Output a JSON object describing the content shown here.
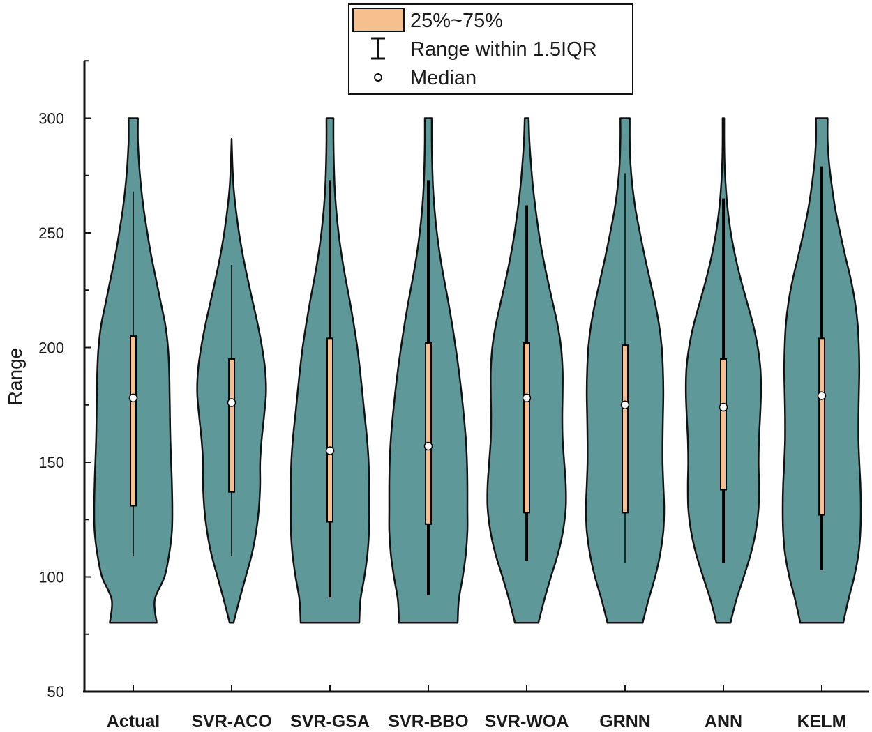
{
  "chart_data": {
    "type": "violin",
    "ylabel": "Range",
    "xlabel": "",
    "ylim": [
      50,
      325
    ],
    "yticks": [
      50,
      100,
      150,
      200,
      250,
      300
    ],
    "categories": [
      "Actual",
      "SVR-ACO",
      "SVR-GSA",
      "SVR-BBO",
      "SVR-WOA",
      "GRNN",
      "ANN",
      "KELM"
    ],
    "series": [
      {
        "name": "Actual",
        "min": 80,
        "max": 300,
        "q1": 131,
        "median": 178,
        "q3": 205,
        "whisker_low": 109,
        "whisker_high": 268,
        "density": [
          [
            80,
            0.6
          ],
          [
            90,
            0.55
          ],
          [
            100,
            0.8
          ],
          [
            110,
            0.92
          ],
          [
            120,
            0.99
          ],
          [
            130,
            1.0
          ],
          [
            140,
            0.99
          ],
          [
            150,
            0.97
          ],
          [
            160,
            0.95
          ],
          [
            170,
            0.94
          ],
          [
            180,
            0.93
          ],
          [
            190,
            0.92
          ],
          [
            200,
            0.89
          ],
          [
            210,
            0.82
          ],
          [
            220,
            0.7
          ],
          [
            230,
            0.58
          ],
          [
            240,
            0.46
          ],
          [
            250,
            0.36
          ],
          [
            260,
            0.27
          ],
          [
            270,
            0.2
          ],
          [
            280,
            0.15
          ],
          [
            290,
            0.12
          ],
          [
            300,
            0.12
          ]
        ]
      },
      {
        "name": "SVR-ACO",
        "min": 80,
        "max": 291,
        "q1": 137,
        "median": 176,
        "q3": 195,
        "whisker_low": 109,
        "whisker_high": 236,
        "density": [
          [
            80,
            0.05
          ],
          [
            90,
            0.2
          ],
          [
            100,
            0.36
          ],
          [
            110,
            0.52
          ],
          [
            120,
            0.63
          ],
          [
            130,
            0.7
          ],
          [
            140,
            0.73
          ],
          [
            150,
            0.73
          ],
          [
            160,
            0.77
          ],
          [
            170,
            0.83
          ],
          [
            180,
            0.88
          ],
          [
            190,
            0.86
          ],
          [
            200,
            0.78
          ],
          [
            210,
            0.67
          ],
          [
            220,
            0.54
          ],
          [
            230,
            0.41
          ],
          [
            240,
            0.29
          ],
          [
            250,
            0.19
          ],
          [
            260,
            0.11
          ],
          [
            270,
            0.05
          ],
          [
            280,
            0.02
          ],
          [
            291,
            0.0
          ]
        ]
      },
      {
        "name": "SVR-GSA",
        "min": 80,
        "max": 300,
        "q1": 124,
        "median": 155,
        "q3": 204,
        "whisker_low": 91,
        "whisker_high": 273,
        "density": [
          [
            80,
            0.75
          ],
          [
            90,
            0.78
          ],
          [
            100,
            0.88
          ],
          [
            110,
            0.96
          ],
          [
            120,
            1.0
          ],
          [
            130,
            1.0
          ],
          [
            140,
            1.0
          ],
          [
            150,
            0.99
          ],
          [
            160,
            0.95
          ],
          [
            170,
            0.89
          ],
          [
            180,
            0.83
          ],
          [
            190,
            0.77
          ],
          [
            200,
            0.7
          ],
          [
            210,
            0.61
          ],
          [
            220,
            0.51
          ],
          [
            230,
            0.4
          ],
          [
            240,
            0.3
          ],
          [
            250,
            0.22
          ],
          [
            260,
            0.16
          ],
          [
            270,
            0.12
          ],
          [
            280,
            0.1
          ],
          [
            290,
            0.09
          ],
          [
            300,
            0.09
          ]
        ]
      },
      {
        "name": "SVR-BBO",
        "min": 80,
        "max": 300,
        "q1": 123,
        "median": 157,
        "q3": 202,
        "whisker_low": 92,
        "whisker_high": 273,
        "density": [
          [
            80,
            0.75
          ],
          [
            90,
            0.78
          ],
          [
            100,
            0.88
          ],
          [
            110,
            0.96
          ],
          [
            120,
            1.0
          ],
          [
            130,
            1.0
          ],
          [
            140,
            1.0
          ],
          [
            150,
            0.99
          ],
          [
            160,
            0.96
          ],
          [
            170,
            0.91
          ],
          [
            180,
            0.85
          ],
          [
            190,
            0.78
          ],
          [
            200,
            0.7
          ],
          [
            210,
            0.61
          ],
          [
            220,
            0.51
          ],
          [
            230,
            0.4
          ],
          [
            240,
            0.3
          ],
          [
            250,
            0.22
          ],
          [
            260,
            0.16
          ],
          [
            270,
            0.12
          ],
          [
            280,
            0.1
          ],
          [
            290,
            0.09
          ],
          [
            300,
            0.09
          ]
        ]
      },
      {
        "name": "SVR-WOA",
        "min": 80,
        "max": 300,
        "q1": 128,
        "median": 178,
        "q3": 202,
        "whisker_low": 107,
        "whisker_high": 262,
        "density": [
          [
            80,
            0.3
          ],
          [
            90,
            0.45
          ],
          [
            100,
            0.62
          ],
          [
            110,
            0.8
          ],
          [
            120,
            0.93
          ],
          [
            130,
            1.0
          ],
          [
            140,
            1.0
          ],
          [
            150,
            0.96
          ],
          [
            160,
            0.92
          ],
          [
            170,
            0.91
          ],
          [
            180,
            0.92
          ],
          [
            190,
            0.92
          ],
          [
            200,
            0.88
          ],
          [
            210,
            0.79
          ],
          [
            220,
            0.66
          ],
          [
            230,
            0.53
          ],
          [
            240,
            0.41
          ],
          [
            250,
            0.31
          ],
          [
            260,
            0.23
          ],
          [
            270,
            0.16
          ],
          [
            280,
            0.11
          ],
          [
            290,
            0.07
          ],
          [
            300,
            0.05
          ]
        ]
      },
      {
        "name": "GRNN",
        "min": 80,
        "max": 300,
        "q1": 128,
        "median": 175,
        "q3": 201,
        "whisker_low": 106,
        "whisker_high": 276,
        "density": [
          [
            80,
            0.45
          ],
          [
            90,
            0.6
          ],
          [
            100,
            0.77
          ],
          [
            110,
            0.9
          ],
          [
            120,
            0.98
          ],
          [
            130,
            1.0
          ],
          [
            140,
            0.98
          ],
          [
            150,
            0.96
          ],
          [
            160,
            0.96
          ],
          [
            170,
            0.97
          ],
          [
            180,
            0.98
          ],
          [
            190,
            0.97
          ],
          [
            200,
            0.94
          ],
          [
            210,
            0.87
          ],
          [
            220,
            0.76
          ],
          [
            230,
            0.63
          ],
          [
            240,
            0.5
          ],
          [
            250,
            0.38
          ],
          [
            260,
            0.27
          ],
          [
            270,
            0.19
          ],
          [
            280,
            0.14
          ],
          [
            290,
            0.12
          ],
          [
            300,
            0.12
          ]
        ]
      },
      {
        "name": "ANN",
        "min": 80,
        "max": 300,
        "q1": 138,
        "median": 174,
        "q3": 195,
        "whisker_low": 106,
        "whisker_high": 265,
        "density": [
          [
            80,
            0.18
          ],
          [
            90,
            0.33
          ],
          [
            100,
            0.52
          ],
          [
            110,
            0.7
          ],
          [
            120,
            0.83
          ],
          [
            130,
            0.9
          ],
          [
            140,
            0.91
          ],
          [
            150,
            0.9
          ],
          [
            160,
            0.91
          ],
          [
            170,
            0.94
          ],
          [
            180,
            0.96
          ],
          [
            190,
            0.95
          ],
          [
            200,
            0.88
          ],
          [
            210,
            0.76
          ],
          [
            220,
            0.6
          ],
          [
            230,
            0.44
          ],
          [
            240,
            0.3
          ],
          [
            250,
            0.19
          ],
          [
            260,
            0.11
          ],
          [
            270,
            0.06
          ],
          [
            280,
            0.03
          ],
          [
            290,
            0.02
          ],
          [
            300,
            0.02
          ]
        ]
      },
      {
        "name": "KELM",
        "min": 80,
        "max": 300,
        "q1": 127,
        "median": 179,
        "q3": 204,
        "whisker_low": 103,
        "whisker_high": 279,
        "density": [
          [
            80,
            0.55
          ],
          [
            90,
            0.68
          ],
          [
            100,
            0.83
          ],
          [
            110,
            0.94
          ],
          [
            120,
            0.99
          ],
          [
            130,
            1.0
          ],
          [
            140,
            0.99
          ],
          [
            150,
            0.96
          ],
          [
            160,
            0.94
          ],
          [
            170,
            0.94
          ],
          [
            180,
            0.95
          ],
          [
            190,
            0.96
          ],
          [
            200,
            0.95
          ],
          [
            210,
            0.92
          ],
          [
            220,
            0.85
          ],
          [
            230,
            0.74
          ],
          [
            240,
            0.6
          ],
          [
            250,
            0.47
          ],
          [
            260,
            0.35
          ],
          [
            270,
            0.26
          ],
          [
            280,
            0.19
          ],
          [
            290,
            0.15
          ],
          [
            300,
            0.15
          ]
        ]
      }
    ],
    "legend": {
      "position": "top-center",
      "items": [
        {
          "label": "25%~75%",
          "kind": "box"
        },
        {
          "label": "Range within 1.5IQR",
          "kind": "whisker"
        },
        {
          "label": "Median",
          "kind": "median"
        }
      ]
    },
    "colors": {
      "violin_fill": "#5f9898",
      "violin_stroke": "#111111",
      "box_fill": "#f6c08e",
      "median_fill": "#ffffff",
      "axis": "#111111"
    }
  }
}
